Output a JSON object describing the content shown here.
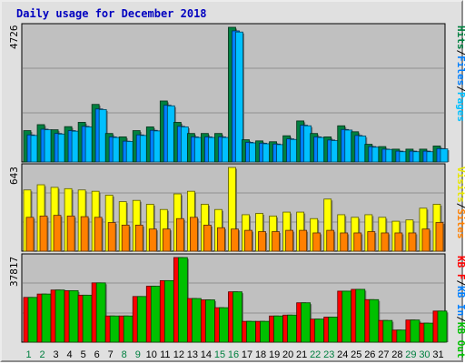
{
  "chart_data": {
    "type": "bar",
    "title": "Daily usage for December 2018",
    "categories": [
      "1",
      "2",
      "3",
      "4",
      "5",
      "6",
      "7",
      "8",
      "9",
      "10",
      "11",
      "12",
      "13",
      "14",
      "15",
      "16",
      "17",
      "18",
      "19",
      "20",
      "21",
      "22",
      "23",
      "24",
      "25",
      "26",
      "27",
      "28",
      "29",
      "30",
      "31"
    ],
    "weekend_days": [
      "1",
      "2",
      "8",
      "9",
      "15",
      "16",
      "22",
      "23",
      "29",
      "30"
    ],
    "panels": [
      {
        "name": "hits-files-pages",
        "max_label": "4726",
        "ymax": 4726,
        "legend": [
          {
            "text": "Hits",
            "color": "#008040"
          },
          {
            "text": "/",
            "color": "#000000"
          },
          {
            "text": "Files",
            "color": "#0080ff"
          },
          {
            "text": "/",
            "color": "#000000"
          },
          {
            "text": "Pages",
            "color": "#00c0ff"
          }
        ],
        "series": [
          {
            "name": "Hits",
            "color": "#008040",
            "values": [
              1100,
              1310,
              1130,
              1240,
              1390,
              2020,
              1000,
              880,
              1100,
              1230,
              2140,
              1390,
              1000,
              1000,
              1000,
              4726,
              780,
              740,
              710,
              920,
              1440,
              1000,
              880,
              1270,
              1060,
              620,
              540,
              450,
              450,
              450,
              560
            ]
          },
          {
            "name": "Files",
            "color": "#0080ff",
            "values": [
              950,
              1150,
              1000,
              1100,
              1250,
              1860,
              880,
              730,
              950,
              1110,
              1990,
              1250,
              880,
              880,
              880,
              4600,
              690,
              660,
              630,
              810,
              1290,
              880,
              770,
              1140,
              930,
              540,
              450,
              380,
              380,
              380,
              470
            ]
          },
          {
            "name": "Pages",
            "color": "#00c0ff",
            "values": [
              930,
              1130,
              980,
              1080,
              1230,
              1840,
              860,
              720,
              930,
              1090,
              1970,
              1230,
              860,
              860,
              860,
              4560,
              670,
              640,
              610,
              790,
              1270,
              860,
              750,
              1120,
              910,
              520,
              440,
              360,
              360,
              360,
              460
            ]
          }
        ]
      },
      {
        "name": "visits-sites",
        "max_label": "643",
        "ymax": 643,
        "legend": [
          {
            "text": "Visits",
            "color": "#e8e800"
          },
          {
            "text": "/",
            "color": "#000000"
          },
          {
            "text": "Sites",
            "color": "#ff8000"
          }
        ],
        "series": [
          {
            "name": "Visits",
            "color": "#ffff00",
            "values": [
              470,
              510,
              490,
              480,
              470,
              460,
              430,
              380,
              390,
              360,
              320,
              440,
              460,
              360,
              320,
              643,
              280,
              290,
              270,
              300,
              300,
              250,
              400,
              280,
              260,
              280,
              260,
              230,
              240,
              330,
              360
            ]
          },
          {
            "name": "Sites",
            "color": "#ff8000",
            "values": [
              260,
              270,
              275,
              270,
              265,
              260,
              220,
              200,
              200,
              170,
              170,
              250,
              260,
              200,
              180,
              170,
              160,
              150,
              150,
              160,
              160,
              140,
              160,
              140,
              140,
              150,
              140,
              140,
              140,
              170,
              220
            ]
          }
        ]
      },
      {
        "name": "kbytes",
        "max_label": "37817",
        "ymax": 37817,
        "legend": [
          {
            "text": "KB F",
            "color": "#ff0000"
          },
          {
            "text": "/",
            "color": "#000000"
          },
          {
            "text": "KB In",
            "color": "#0080ff"
          },
          {
            "text": "/",
            "color": "#000000"
          },
          {
            "text": "KB Out",
            "color": "#00c000"
          }
        ],
        "series": [
          {
            "name": "KB F",
            "color": "#ff0000",
            "values": [
              20000,
              21500,
              23300,
              23000,
              21000,
              26500,
              11700,
              11700,
              20400,
              25000,
              27500,
              37817,
              19500,
              18900,
              15400,
              22500,
              9300,
              9300,
              11700,
              12100,
              17600,
              10300,
              11200,
              22800,
              23600,
              19000,
              9700,
              5400,
              9900,
              8500,
              13900
            ]
          },
          {
            "name": "KB Out",
            "color": "#00c000",
            "values": [
              20000,
              21500,
              23300,
              23000,
              21000,
              26500,
              11700,
              11700,
              20400,
              25000,
              27500,
              37817,
              19500,
              18900,
              15400,
              22500,
              9300,
              9300,
              11700,
              12100,
              17600,
              10300,
              11200,
              22800,
              23600,
              19000,
              9700,
              5400,
              9900,
              8500,
              13900
            ]
          }
        ]
      }
    ]
  }
}
